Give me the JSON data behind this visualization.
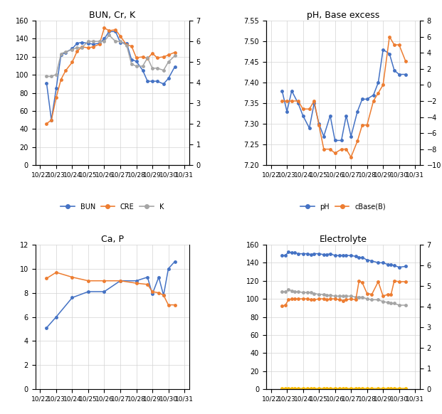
{
  "x_labels": [
    "10/22",
    "10/23",
    "10/24",
    "10/25",
    "10/26",
    "10/27",
    "10/28",
    "10/29",
    "10/30",
    "10/31"
  ],
  "bun_x": [
    0.4,
    0.7,
    1.0,
    1.3,
    1.6,
    2.0,
    2.3,
    2.6,
    3.0,
    3.3,
    3.7,
    4.0,
    4.3,
    4.7,
    5.0,
    5.4,
    5.7,
    6.0,
    6.4,
    6.7,
    7.0,
    7.3,
    7.7,
    8.0,
    8.4
  ],
  "bun_y": [
    91,
    50,
    85,
    122,
    125,
    129,
    135,
    136,
    135,
    134,
    135,
    140,
    148,
    148,
    136,
    135,
    117,
    115,
    105,
    93,
    93,
    93,
    90,
    96,
    109
  ],
  "cre_x": [
    0.4,
    0.7,
    1.0,
    1.3,
    1.6,
    2.0,
    2.3,
    2.6,
    3.0,
    3.3,
    3.7,
    4.0,
    4.3,
    4.7,
    5.0,
    5.4,
    5.7,
    6.0,
    6.4,
    6.7,
    7.0,
    7.3,
    7.7,
    8.0,
    8.4
  ],
  "cre_y": [
    46,
    50,
    75,
    95,
    105,
    114,
    126,
    131,
    130,
    131,
    134,
    152,
    149,
    150,
    143,
    133,
    132,
    119,
    120,
    118,
    124,
    119,
    120,
    122,
    125
  ],
  "k_x": [
    0.4,
    0.7,
    1.0,
    1.3,
    1.6,
    2.0,
    2.3,
    2.6,
    3.0,
    3.3,
    3.7,
    4.0,
    4.3,
    4.7,
    5.0,
    5.4,
    5.7,
    6.0,
    6.4,
    6.7,
    7.0,
    7.3,
    7.7,
    8.0,
    8.4
  ],
  "k_y": [
    4.3,
    4.3,
    4.4,
    5.4,
    5.5,
    5.6,
    5.7,
    5.7,
    6.0,
    6.0,
    6.0,
    6.0,
    6.3,
    6.0,
    6.0,
    5.8,
    4.9,
    4.8,
    4.8,
    5.2,
    4.7,
    4.7,
    4.6,
    5.0,
    5.3
  ],
  "ph_x": [
    0.7,
    1.0,
    1.3,
    1.7,
    2.0,
    2.4,
    2.7,
    3.0,
    3.3,
    3.7,
    4.0,
    4.4,
    4.7,
    5.0,
    5.4,
    5.7,
    6.0,
    6.4,
    6.7,
    7.0,
    7.4,
    7.7,
    8.0,
    8.4
  ],
  "ph_y": [
    7.38,
    7.33,
    7.38,
    7.35,
    7.32,
    7.29,
    7.35,
    7.3,
    7.27,
    7.32,
    7.26,
    7.26,
    7.32,
    7.27,
    7.33,
    7.36,
    7.36,
    7.37,
    7.4,
    7.48,
    7.47,
    7.43,
    7.42,
    7.42
  ],
  "be_x": [
    0.7,
    1.0,
    1.3,
    1.7,
    2.0,
    2.4,
    2.7,
    3.0,
    3.3,
    3.7,
    4.0,
    4.4,
    4.7,
    5.0,
    5.4,
    5.7,
    6.0,
    6.4,
    6.7,
    7.0,
    7.4,
    7.7,
    8.0,
    8.4
  ],
  "be_y": [
    -2.0,
    -2.0,
    -2.0,
    -2.0,
    -3.0,
    -3.0,
    -2.0,
    -5.0,
    -8.0,
    -8.0,
    -8.5,
    -8.0,
    -8.0,
    -9.0,
    -7.0,
    -5.0,
    -5.0,
    -2.0,
    -1.0,
    0.0,
    6.0,
    5.0,
    5.0,
    3.0
  ],
  "p_x": [
    0.4,
    1.0,
    2.0,
    3.0,
    4.0,
    5.0,
    6.0,
    6.7,
    7.0,
    7.4,
    7.7,
    8.0,
    8.4
  ],
  "p_y": [
    5.1,
    6.0,
    7.6,
    8.1,
    8.1,
    9.0,
    9.0,
    9.3,
    7.9,
    9.3,
    7.8,
    10.0,
    10.6
  ],
  "ca_x": [
    0.4,
    1.0,
    2.0,
    3.0,
    4.0,
    5.0,
    6.0,
    6.7,
    7.0,
    7.4,
    7.7,
    8.0,
    8.4
  ],
  "ca_y": [
    9.2,
    9.7,
    9.3,
    9.0,
    9.0,
    9.0,
    8.8,
    8.7,
    8.1,
    8.0,
    7.8,
    7.0,
    7.0
  ],
  "na_x": [
    0.7,
    0.9,
    1.1,
    1.3,
    1.5,
    1.7,
    2.0,
    2.3,
    2.5,
    2.7,
    3.0,
    3.3,
    3.5,
    3.7,
    4.0,
    4.3,
    4.5,
    4.7,
    5.0,
    5.3,
    5.5,
    5.7,
    6.0,
    6.3,
    6.7,
    7.0,
    7.3,
    7.5,
    7.7,
    8.0,
    8.4
  ],
  "na_y": [
    148,
    148,
    152,
    151,
    151,
    150,
    150,
    150,
    149,
    150,
    150,
    149,
    149,
    150,
    148,
    148,
    148,
    148,
    148,
    147,
    146,
    146,
    143,
    142,
    140,
    140,
    138,
    138,
    137,
    135,
    136
  ],
  "cl_x": [
    0.7,
    0.9,
    1.1,
    1.3,
    1.5,
    1.7,
    2.0,
    2.3,
    2.5,
    2.7,
    3.0,
    3.3,
    3.5,
    3.7,
    4.0,
    4.3,
    4.5,
    4.7,
    5.0,
    5.3,
    5.5,
    5.7,
    6.0,
    6.3,
    6.7,
    7.0,
    7.3,
    7.5,
    7.7,
    8.0,
    8.4
  ],
  "cl_y": [
    108,
    108,
    110,
    109,
    108,
    108,
    107,
    107,
    107,
    106,
    105,
    105,
    104,
    104,
    103,
    103,
    103,
    103,
    103,
    102,
    102,
    102,
    100,
    99,
    99,
    97,
    96,
    95,
    95,
    93,
    93
  ],
  "k2_x": [
    0.7,
    0.9,
    1.1,
    1.3,
    1.5,
    1.7,
    2.0,
    2.3,
    2.5,
    2.7,
    3.0,
    3.3,
    3.5,
    3.7,
    4.0,
    4.3,
    4.5,
    4.7,
    5.0,
    5.3,
    5.5,
    5.7,
    6.0,
    6.3,
    6.7,
    7.0,
    7.3,
    7.5,
    7.7,
    8.0,
    8.4
  ],
  "k2_y": [
    92,
    93,
    99,
    100,
    100,
    100,
    100,
    100,
    99,
    99,
    100,
    100,
    99,
    100,
    100,
    99,
    98,
    99,
    100,
    99,
    120,
    118,
    106,
    105,
    119,
    103,
    105,
    105,
    120,
    119,
    119
  ],
  "ica_x": [
    0.7,
    0.9,
    1.1,
    1.3,
    1.5,
    1.7,
    2.0,
    2.3,
    2.5,
    2.7,
    3.0,
    3.3,
    3.5,
    3.7,
    4.0,
    4.3,
    4.5,
    4.7,
    5.0,
    5.3,
    5.5,
    5.7,
    6.0,
    6.3,
    6.7,
    7.0,
    7.3,
    7.5,
    7.7,
    8.0,
    8.4
  ],
  "ica_y": [
    1.0,
    1.0,
    1.0,
    1.0,
    1.0,
    1.0,
    1.0,
    1.0,
    1.0,
    1.0,
    1.0,
    1.0,
    1.0,
    1.0,
    1.0,
    1.0,
    1.0,
    1.0,
    1.0,
    1.0,
    1.0,
    1.0,
    1.0,
    1.0,
    1.0,
    1.0,
    1.0,
    1.0,
    1.0,
    1.0,
    1.0
  ],
  "color_blue": "#4472C4",
  "color_orange": "#ED7D31",
  "color_gray": "#A5A5A5",
  "color_yellow": "#FFC000",
  "bg_color": "#FFFFFF",
  "grid_color": "#D3D3D3"
}
